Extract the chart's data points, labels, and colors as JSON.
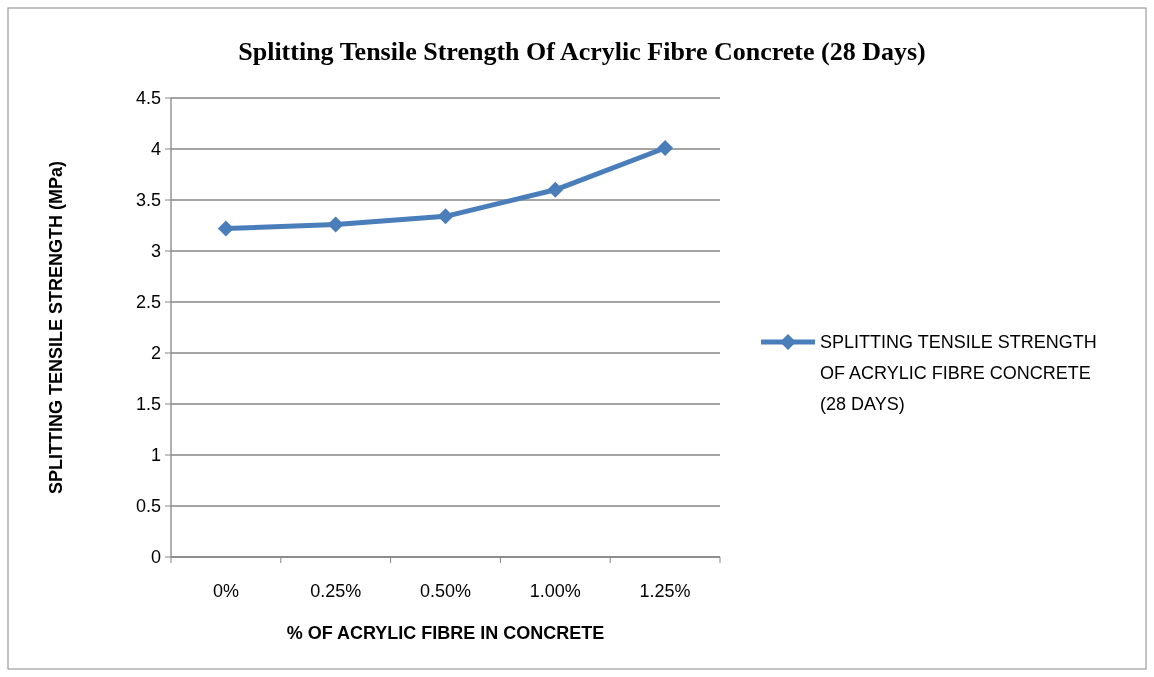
{
  "chart_data": {
    "type": "line",
    "title": "Splitting Tensile Strength Of Acrylic Fibre Concrete (28 Days)",
    "xlabel": "% OF ACRYLIC FIBRE IN CONCRETE",
    "ylabel": "SPLITTING TENSILE STRENGTH (MPa)",
    "categories": [
      "0%",
      "0.25%",
      "0.50%",
      "1.00%",
      "1.25%"
    ],
    "series": [
      {
        "name": "SPLITTING TENSILE STRENGTH OF ACRYLIC FIBRE CONCRETE (28 DAYS)",
        "color": "#4a7ebb",
        "values": [
          3.22,
          3.26,
          3.34,
          3.6,
          4.01
        ]
      }
    ],
    "ylim": [
      0,
      4.5
    ],
    "yticks": [
      0,
      0.5,
      1,
      1.5,
      2,
      2.5,
      3,
      3.5,
      4,
      4.5
    ],
    "grid": "y",
    "legend": "right",
    "marker": "diamond"
  }
}
